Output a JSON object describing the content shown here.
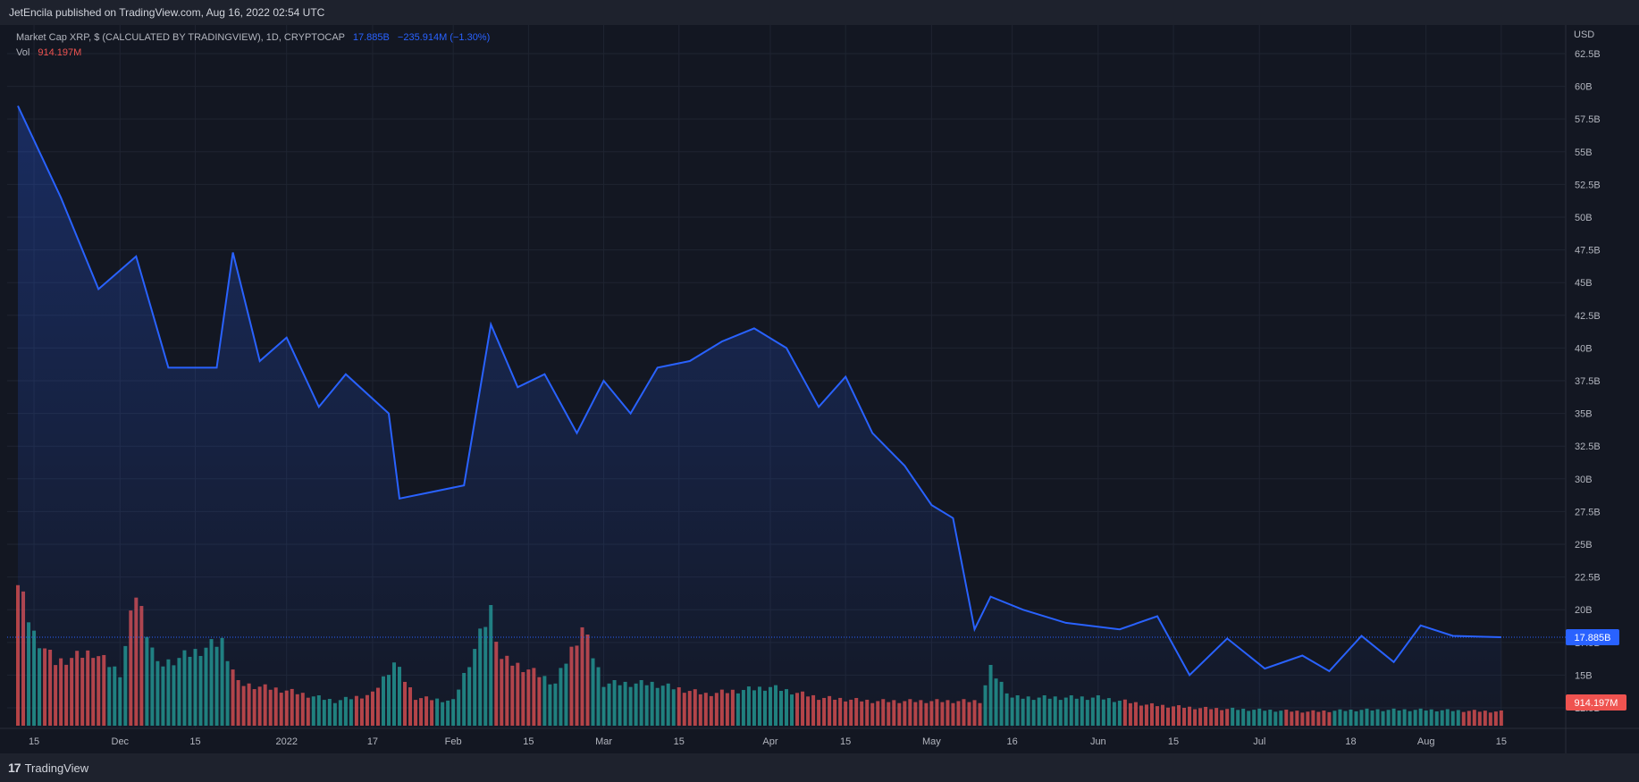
{
  "header": {
    "publisher_line": "JetEncila published on TradingView.com, Aug 16, 2022 02:54 UTC"
  },
  "legend": {
    "symbol": "Market Cap XRP, $ (CALCULATED BY TRADINGVIEW), 1D, CRYPTOCAP",
    "last_value": "17.885B",
    "change": "−235.914M (−1.30%)",
    "vol_label": "Vol",
    "vol_value": "914.197M"
  },
  "footer": {
    "brand": "TradingView",
    "logo_text": "17"
  },
  "colors": {
    "background": "#131722",
    "line": "#2962ff",
    "volume_up": "#26a69a",
    "volume_down": "#ef5350",
    "grid": "#1f2431",
    "axis_text": "#b2b5be"
  },
  "chart_data": {
    "type": "line",
    "title": "Market Cap XRP, $ (CALCULATED BY TRADINGVIEW), 1D, CRYPTOCAP",
    "y_unit_label": "USD",
    "y_ticks": [
      "62.5B",
      "60B",
      "57.5B",
      "55B",
      "52.5B",
      "50B",
      "47.5B",
      "45B",
      "42.5B",
      "40B",
      "37.5B",
      "35B",
      "32.5B",
      "30B",
      "27.5B",
      "25B",
      "22.5B",
      "20B",
      "17.5B",
      "15B",
      "12.5B"
    ],
    "ylim": [
      11,
      64
    ],
    "x_ticks": [
      "15",
      "Dec",
      "15",
      "2022",
      "17",
      "Feb",
      "15",
      "Mar",
      "15",
      "Apr",
      "15",
      "May",
      "16",
      "Jun",
      "15",
      "Jul",
      "18",
      "Aug",
      "15"
    ],
    "x_tick_dates": [
      "2021-11-15",
      "2021-12-01",
      "2021-12-15",
      "2022-01-01",
      "2022-01-17",
      "2022-02-01",
      "2022-02-15",
      "2022-03-01",
      "2022-03-15",
      "2022-04-01",
      "2022-04-15",
      "2022-05-01",
      "2022-05-16",
      "2022-06-01",
      "2022-06-15",
      "2022-07-01",
      "2022-07-18",
      "2022-08-01",
      "2022-08-15"
    ],
    "last_price_label": "17.885B",
    "last_volume_label": "914.197M",
    "grid": true,
    "series": [
      {
        "name": "Market Cap XRP",
        "x": [
          "2021-11-12",
          "2021-11-20",
          "2021-11-27",
          "2021-12-04",
          "2021-12-10",
          "2021-12-19",
          "2021-12-22",
          "2021-12-27",
          "2022-01-01",
          "2022-01-07",
          "2022-01-12",
          "2022-01-20",
          "2022-01-22",
          "2022-01-28",
          "2022-02-03",
          "2022-02-08",
          "2022-02-13",
          "2022-02-18",
          "2022-02-24",
          "2022-03-01",
          "2022-03-06",
          "2022-03-11",
          "2022-03-17",
          "2022-03-23",
          "2022-03-29",
          "2022-04-04",
          "2022-04-10",
          "2022-04-15",
          "2022-04-20",
          "2022-04-26",
          "2022-05-01",
          "2022-05-05",
          "2022-05-09",
          "2022-05-12",
          "2022-05-18",
          "2022-05-26",
          "2022-06-05",
          "2022-06-12",
          "2022-06-18",
          "2022-06-25",
          "2022-07-02",
          "2022-07-09",
          "2022-07-14",
          "2022-07-20",
          "2022-07-26",
          "2022-07-31",
          "2022-08-06",
          "2022-08-15"
        ],
        "values": [
          58.5,
          51.5,
          44.5,
          47.0,
          38.5,
          38.5,
          47.3,
          39.0,
          40.8,
          35.5,
          38.0,
          35.0,
          28.5,
          29.0,
          29.5,
          41.8,
          37.0,
          38.0,
          33.5,
          37.5,
          35.0,
          38.5,
          39.0,
          40.5,
          41.5,
          40.0,
          35.5,
          37.8,
          33.5,
          31.0,
          28.0,
          27.0,
          18.5,
          21.0,
          20.0,
          19.0,
          18.5,
          19.5,
          15.0,
          17.8,
          15.5,
          16.5,
          15.3,
          18.0,
          16.0,
          18.8,
          18.0,
          17.9
        ]
      }
    ],
    "volume_series": {
      "name": "Vol",
      "x": [
        "2021-11-12",
        "2021-11-15",
        "2021-11-19",
        "2021-11-26",
        "2021-12-01",
        "2021-12-04",
        "2021-12-08",
        "2021-12-15",
        "2021-12-20",
        "2021-12-23",
        "2022-01-01",
        "2022-01-10",
        "2022-01-17",
        "2022-01-21",
        "2022-01-25",
        "2022-02-01",
        "2022-02-08",
        "2022-02-10",
        "2022-02-15",
        "2022-02-20",
        "2022-02-25",
        "2022-03-01",
        "2022-03-10",
        "2022-03-20",
        "2022-04-01",
        "2022-04-10",
        "2022-04-20",
        "2022-05-01",
        "2022-05-10",
        "2022-05-12",
        "2022-05-16",
        "2022-05-20",
        "2022-06-01",
        "2022-06-10",
        "2022-06-20",
        "2022-07-01",
        "2022-07-10",
        "2022-07-20",
        "2022-08-01",
        "2022-08-15"
      ],
      "values": [
        4.0,
        2.6,
        1.8,
        2.1,
        1.5,
        3.8,
        1.7,
        2.1,
        2.4,
        1.2,
        1.0,
        0.7,
        0.9,
        1.8,
        0.8,
        0.7,
        3.3,
        1.9,
        1.6,
        1.2,
        2.8,
        1.2,
        1.2,
        0.9,
        1.1,
        0.8,
        0.7,
        0.7,
        0.7,
        1.6,
        0.8,
        0.8,
        0.8,
        0.6,
        0.5,
        0.45,
        0.4,
        0.45,
        0.45,
        0.4
      ],
      "up": [
        false,
        true,
        false,
        false,
        true,
        false,
        true,
        true,
        true,
        false,
        false,
        true,
        false,
        true,
        false,
        true,
        true,
        false,
        false,
        true,
        false,
        true,
        true,
        false,
        true,
        false,
        false,
        false,
        false,
        true,
        true,
        true,
        true,
        false,
        false,
        true,
        false,
        true,
        true,
        false
      ]
    }
  }
}
